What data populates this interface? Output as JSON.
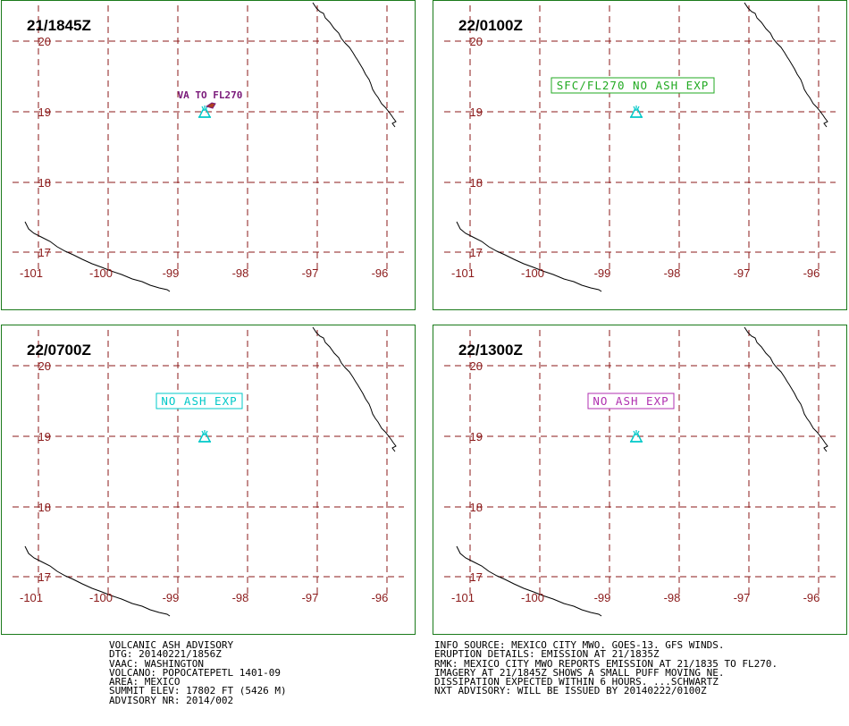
{
  "panels": [
    {
      "time": "21/1845Z",
      "label": {
        "text": "VA TO FL270",
        "style": "plain",
        "color": "#7a1a7a"
      },
      "volcano_color": "#00c8c8",
      "plume": true
    },
    {
      "time": "22/0100Z",
      "label": {
        "text": "SFC/FL270 NO ASH EXP",
        "style": "box",
        "color": "#22aa22"
      },
      "volcano_color": "#00c8c8",
      "plume": false
    },
    {
      "time": "22/0700Z",
      "label": {
        "text": "NO ASH EXP",
        "style": "box",
        "color": "#00c8c8"
      },
      "volcano_color": "#00c8c8",
      "plume": false
    },
    {
      "time": "22/1300Z",
      "label": {
        "text": "NO ASH EXP",
        "style": "box",
        "color": "#b030b0"
      },
      "volcano_color": "#00c8c8",
      "plume": false
    }
  ],
  "lat_labels": [
    "20",
    "19",
    "18",
    "17"
  ],
  "lon_labels": [
    "-101",
    "-100",
    "-99",
    "-98",
    "-97",
    "-96"
  ],
  "colors": {
    "grid": "#8b1a1a",
    "border": "#1a7a1a",
    "coast": "#000000"
  },
  "advisory_left": [
    "VOLCANIC ASH ADVISORY",
    "DTG: 20140221/1856Z",
    "VAAC: WASHINGTON",
    "VOLCANO: POPOCATEPETL 1401-09",
    "AREA: MEXICO",
    "SUMMIT ELEV: 17802 FT (5426 M)",
    "ADVISORY NR: 2014/002"
  ],
  "advisory_right": [
    "INFO SOURCE: MEXICO CITY MWO. GOES-13. GFS WINDS.",
    "ERUPTION DETAILS: EMISSION AT 21/1835Z",
    "RMK: MEXICO CITY MWO REPORTS EMISSION AT 21/1835 TO FL270.",
    "IMAGERY AT 21/1845Z SHOWS A SMALL PUFF MOVING NE.",
    "DISSIPATION EXPECTED WITHIN 6 HOURS. ...SCHWARTZ",
    "NXT ADVISORY: WILL BE ISSUED BY 20140222/0100Z"
  ]
}
